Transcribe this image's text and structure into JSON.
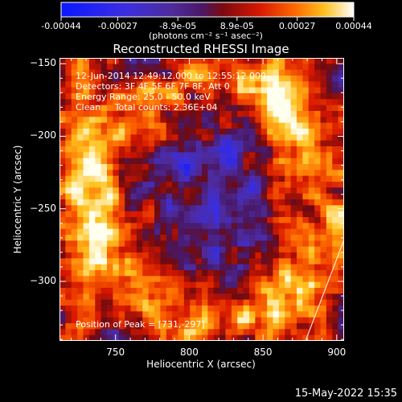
{
  "colorbar": {
    "tick_labels": [
      "-0.00044",
      "-0.00027",
      "-8.9e-05",
      "8.9e-05",
      "0.00027",
      "0.00044"
    ],
    "tick_values": [
      -0.00044,
      -0.00027,
      -8.9e-05,
      8.9e-05,
      0.00027,
      0.00044
    ],
    "range": [
      -0.00044,
      0.00044
    ],
    "units_label": "(photons cm⁻² s⁻¹ asec⁻²)",
    "colors": [
      "#0a1cff",
      "#4a2cc8",
      "#5a2aa0",
      "#8a1010",
      "#e02000",
      "#ff8000",
      "#ffe040",
      "#ffffff"
    ]
  },
  "chart_data": {
    "type": "heatmap",
    "title": "Reconstructed RHESSI Image",
    "xlabel": "Heliocentric X (arcsec)",
    "ylabel": "Heliocentric Y (arcsec)",
    "xlim": [
      712,
      905
    ],
    "ylim": [
      -341,
      -146
    ],
    "x_ticks": [
      750,
      800,
      850,
      900
    ],
    "y_ticks": [
      -150,
      -200,
      -250,
      -300
    ],
    "annotations": [
      "12-Jun-2014 12:49:12.000 to 12:55:12.000",
      "Detectors: 3F 4F 5F 6F 7F 8F, Att 0",
      "Energy Range: 25.0 - 50.0 keV",
      "Clean     Total counts: 2.36E+04"
    ],
    "peak_label": "Position of Peak = [731,-297]",
    "peak_position": [
      731,
      -297
    ],
    "grid": false
  },
  "footer": {
    "timestamp": "15-May-2022 15:35"
  }
}
